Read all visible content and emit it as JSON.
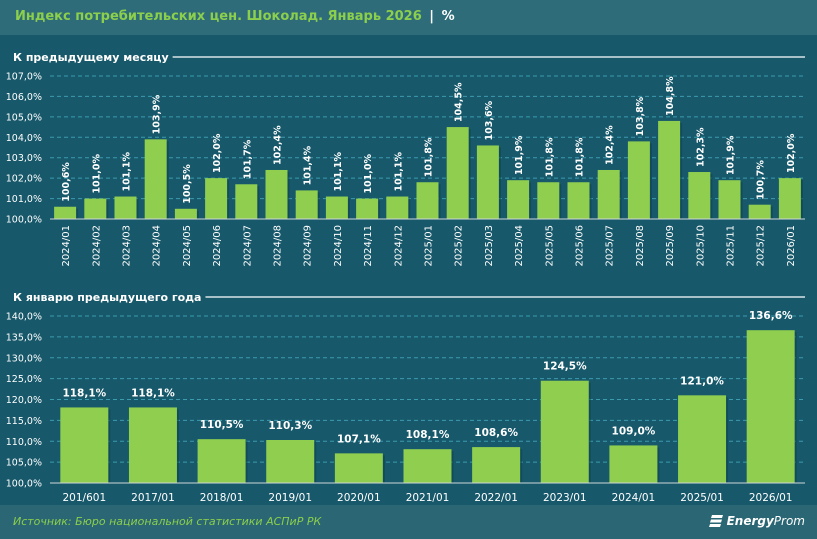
{
  "header": {
    "title": "Индекс потребительских цен. Шоколад. Январь 2026",
    "separator": "|",
    "unit": "%"
  },
  "footer": {
    "source": "Источник: Бюро национальной статистики АСПиР РК",
    "logo_text_bold": "Energy",
    "logo_text": "Prom",
    "logo_icon": "energyprom-logo-icon"
  },
  "colors": {
    "bar": "#8fce4f",
    "background": "#17586a",
    "title": "#8ccf4c"
  },
  "chart_data": [
    {
      "type": "bar",
      "title": "К предыдущему месяцу",
      "ylim": [
        100,
        107
      ],
      "yticks": [
        "100,0%",
        "101,0%",
        "102,0%",
        "103,0%",
        "104,0%",
        "105,0%",
        "106,0%",
        "107,0%"
      ],
      "grid": true,
      "categories": [
        "2024/01",
        "2024/02",
        "2024/03",
        "2024/04",
        "2024/05",
        "2024/06",
        "2024/07",
        "2024/08",
        "2024/09",
        "2024/10",
        "2024/11",
        "2024/12",
        "2025/01",
        "2025/02",
        "2025/03",
        "2025/04",
        "2025/05",
        "2025/06",
        "2025/07",
        "2025/08",
        "2025/09",
        "2025/10",
        "2025/11",
        "2025/12",
        "2026/01"
      ],
      "values": [
        100.6,
        101.0,
        101.1,
        103.9,
        100.5,
        102.0,
        101.7,
        102.4,
        101.4,
        101.1,
        101.0,
        101.1,
        101.8,
        104.5,
        103.6,
        101.9,
        101.8,
        101.8,
        102.4,
        103.8,
        104.8,
        102.3,
        101.9,
        100.7,
        102.0
      ],
      "labels": [
        "100,6%",
        "101,0%",
        "101,1%",
        "103,9%",
        "100,5%",
        "102,0%",
        "101,7%",
        "102,4%",
        "101,4%",
        "101,1%",
        "101,0%",
        "101,1%",
        "101,8%",
        "104,5%",
        "103,6%",
        "101,9%",
        "101,8%",
        "101,8%",
        "102,4%",
        "103,8%",
        "104,8%",
        "102,3%",
        "101,9%",
        "100,7%",
        "102,0%"
      ]
    },
    {
      "type": "bar",
      "title": "К январю предыдущего года",
      "ylim": [
        100,
        140
      ],
      "yticks": [
        "100,0%",
        "105,0%",
        "110,0%",
        "115,0%",
        "120,0%",
        "125,0%",
        "130,0%",
        "135,0%",
        "140,0%"
      ],
      "grid": true,
      "categories": [
        "201/601",
        "2017/01",
        "2018/01",
        "2019/01",
        "2020/01",
        "2021/01",
        "2022/01",
        "2023/01",
        "2024/01",
        "2025/01",
        "2026/01"
      ],
      "values": [
        118.1,
        118.1,
        110.5,
        110.3,
        107.1,
        108.1,
        108.6,
        124.5,
        109.0,
        121.0,
        136.6
      ],
      "labels": [
        "118,1%",
        "118,1%",
        "110,5%",
        "110,3%",
        "107,1%",
        "108,1%",
        "108,6%",
        "124,5%",
        "109,0%",
        "121,0%",
        "136,6%"
      ]
    }
  ]
}
